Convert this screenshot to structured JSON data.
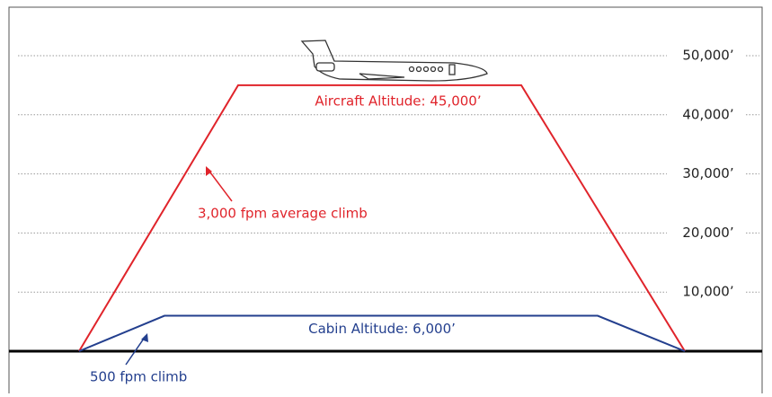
{
  "chart_data": {
    "type": "profile",
    "yticks": [
      {
        "value": 10000,
        "label": "10,000’"
      },
      {
        "value": 20000,
        "label": "20,000’"
      },
      {
        "value": 30000,
        "label": "30,000’"
      },
      {
        "value": 40000,
        "label": "40,000’"
      },
      {
        "value": 50000,
        "label": "50,000’"
      }
    ],
    "ylim": [
      0,
      50000
    ],
    "grid": true,
    "series": [
      {
        "name": "Aircraft Altitude: 45,000’",
        "color": "#e0242b",
        "values": [
          0,
          45000,
          45000,
          0
        ]
      },
      {
        "name": "Cabin Altitude: 6,000’",
        "color": "#233f8e",
        "values": [
          0,
          6000,
          6000,
          0
        ]
      }
    ],
    "annotations": [
      "3,000 fpm average climb",
      "500 fpm climb"
    ]
  }
}
